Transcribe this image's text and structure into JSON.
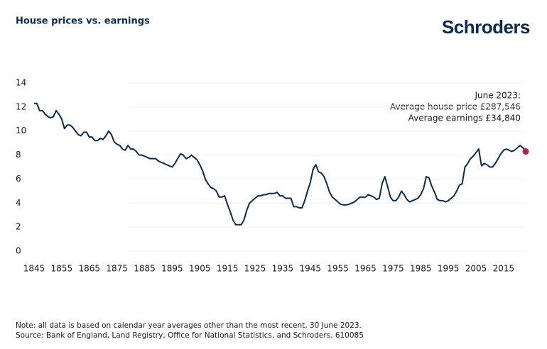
{
  "chart_data": {
    "type": "line",
    "title": "House prices vs. earnings",
    "brand": "Schroders",
    "annotation": [
      "June 2023:",
      "Average house price £287,546",
      "Average earnings  £34,840"
    ],
    "notes": [
      "Note: all data is based on calendar year averages other than the most recent, 30 June 2023.",
      "Source: Bank of England, Land Registry, Office for National Statistics, and Schroders. 610085"
    ],
    "x": [
      1845,
      1846,
      1847,
      1848,
      1849,
      1850,
      1851,
      1852,
      1853,
      1854,
      1855,
      1856,
      1857,
      1858,
      1859,
      1860,
      1861,
      1862,
      1863,
      1864,
      1865,
      1866,
      1867,
      1868,
      1869,
      1870,
      1871,
      1872,
      1873,
      1874,
      1875,
      1876,
      1877,
      1878,
      1879,
      1880,
      1881,
      1882,
      1883,
      1884,
      1885,
      1886,
      1887,
      1888,
      1889,
      1890,
      1891,
      1892,
      1893,
      1894,
      1895,
      1896,
      1897,
      1898,
      1899,
      1900,
      1901,
      1902,
      1903,
      1904,
      1905,
      1906,
      1907,
      1908,
      1909,
      1910,
      1911,
      1912,
      1913,
      1914,
      1915,
      1916,
      1917,
      1918,
      1919,
      1920,
      1921,
      1922,
      1923,
      1924,
      1925,
      1926,
      1927,
      1928,
      1929,
      1930,
      1931,
      1932,
      1933,
      1934,
      1935,
      1936,
      1937,
      1938,
      1939,
      1940,
      1941,
      1942,
      1943,
      1944,
      1945,
      1946,
      1947,
      1948,
      1949,
      1950,
      1951,
      1952,
      1953,
      1954,
      1955,
      1956,
      1957,
      1958,
      1959,
      1960,
      1961,
      1962,
      1963,
      1964,
      1965,
      1966,
      1967,
      1968,
      1969,
      1970,
      1971,
      1972,
      1973,
      1974,
      1975,
      1976,
      1977,
      1978,
      1979,
      1980,
      1981,
      1982,
      1983,
      1984,
      1985,
      1986,
      1987,
      1988,
      1989,
      1990,
      1991,
      1992,
      1993,
      1994,
      1995,
      1996,
      1997,
      1998,
      1999,
      2000,
      2001,
      2002,
      2003,
      2004,
      2005,
      2006,
      2007,
      2008,
      2009,
      2010,
      2011,
      2012,
      2013,
      2014,
      2015,
      2016,
      2017,
      2018,
      2019,
      2020,
      2021,
      2022,
      2023
    ],
    "values": [
      12.3,
      12.3,
      11.7,
      11.7,
      11.4,
      11.2,
      11.1,
      11.2,
      11.7,
      11.4,
      11.0,
      10.2,
      10.5,
      10.5,
      10.3,
      10.0,
      9.7,
      9.6,
      9.9,
      9.9,
      9.5,
      9.5,
      9.2,
      9.2,
      9.4,
      9.3,
      9.6,
      10.0,
      9.7,
      9.1,
      8.9,
      8.8,
      8.5,
      8.4,
      8.8,
      8.5,
      8.5,
      8.3,
      8.0,
      8.0,
      7.9,
      7.8,
      7.7,
      7.7,
      7.7,
      7.5,
      7.4,
      7.3,
      7.2,
      7.1,
      7.0,
      7.3,
      7.7,
      8.1,
      8.0,
      7.7,
      7.8,
      8.0,
      7.8,
      7.6,
      7.2,
      6.7,
      6.0,
      5.6,
      5.3,
      5.2,
      5.0,
      4.5,
      4.5,
      4.6,
      3.9,
      3.3,
      2.6,
      2.2,
      2.2,
      2.2,
      2.6,
      3.4,
      4.0,
      4.2,
      4.4,
      4.6,
      4.6,
      4.7,
      4.7,
      4.8,
      4.8,
      4.8,
      4.9,
      4.6,
      4.6,
      4.4,
      4.4,
      4.4,
      3.7,
      3.7,
      3.6,
      3.6,
      4.2,
      5.0,
      5.7,
      6.8,
      7.2,
      6.6,
      6.5,
      6.2,
      5.6,
      4.9,
      4.5,
      4.3,
      4.1,
      3.9,
      3.85,
      3.85,
      3.9,
      4.0,
      4.1,
      4.3,
      4.5,
      4.5,
      4.5,
      4.7,
      4.6,
      4.5,
      4.3,
      4.4,
      5.6,
      6.2,
      5.4,
      4.5,
      4.2,
      4.2,
      4.5,
      5.0,
      4.7,
      4.3,
      4.1,
      4.2,
      4.3,
      4.4,
      4.7,
      5.2,
      6.2,
      6.1,
      5.4,
      4.9,
      4.3,
      4.2,
      4.2,
      4.1,
      4.2,
      4.4,
      4.6,
      5.0,
      5.5,
      5.6,
      7.0,
      7.3,
      7.7,
      7.9,
      8.2,
      8.5,
      7.1,
      7.3,
      7.2,
      7.0,
      7.0,
      7.3,
      7.7,
      8.1,
      8.4,
      8.5,
      8.4,
      8.3,
      8.4,
      8.6,
      8.8,
      8.6,
      8.3
    ],
    "color": "#0b2a4f",
    "marker_color": "#b31e5f",
    "xlim": [
      1845,
      2023
    ],
    "xticks": [
      1845,
      1855,
      1865,
      1875,
      1885,
      1895,
      1905,
      1915,
      1925,
      1935,
      1945,
      1955,
      1965,
      1975,
      1985,
      1995,
      2005,
      2015
    ],
    "ylim": [
      0,
      14
    ],
    "yticks": [
      0,
      2,
      4,
      6,
      8,
      10,
      12,
      14
    ]
  }
}
